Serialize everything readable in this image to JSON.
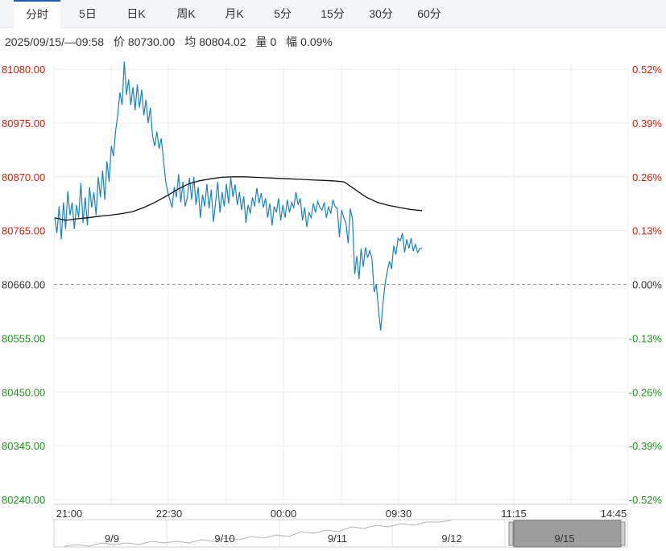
{
  "tabs": [
    {
      "label": "分时",
      "active": true
    },
    {
      "label": "5日",
      "active": false
    },
    {
      "label": "日K",
      "active": false
    },
    {
      "label": "周K",
      "active": false
    },
    {
      "label": "月K",
      "active": false
    },
    {
      "label": "5分",
      "active": false
    },
    {
      "label": "15分",
      "active": false
    },
    {
      "label": "30分",
      "active": false
    },
    {
      "label": "60分",
      "active": false
    }
  ],
  "info": {
    "datetime": "2025/09/15/—09:58",
    "price_label": "价",
    "price": "80730.00",
    "avg_label": "均",
    "avg": "80804.02",
    "volume_label": "量",
    "volume": "0",
    "change_label": "幅",
    "change": "0.09%"
  },
  "colors": {
    "up": "#d81e06",
    "down": "#1a9a1a",
    "price_line": "#1a82c4",
    "avg_line": "#111111",
    "tab_active_border": "#1a5fb4"
  },
  "chart_data": {
    "type": "line",
    "base_price": 80660,
    "ylim": [
      80240,
      81080
    ],
    "y_ticks": [
      "81080.00",
      "80975.00",
      "80870.00",
      "80765.00",
      "80660.00",
      "80555.00",
      "80450.00",
      "80345.00",
      "80240.00"
    ],
    "pct_ticks": [
      "0.52%",
      "0.39%",
      "0.26%",
      "0.13%",
      "0.00%",
      "-0.13%",
      "-0.26%",
      "-0.39%",
      "-0.52%"
    ],
    "x_ticks": [
      "21:00",
      "22:30",
      "00:00",
      "09:30",
      "11:15",
      "14:45"
    ],
    "series": [
      {
        "name": "价",
        "values": [
          80790,
          80760,
          80812,
          80748,
          80820,
          80768,
          80842,
          80795,
          80820,
          80768,
          80815,
          80790,
          80858,
          80780,
          80830,
          80775,
          80850,
          80810,
          80840,
          80795,
          80870,
          80830,
          80882,
          80825,
          80900,
          80860,
          80930,
          80910,
          80960,
          80990,
          81035,
          81010,
          81095,
          81030,
          81060,
          81010,
          81045,
          81000,
          81050,
          81005,
          81040,
          80990,
          81020,
          80975,
          81005,
          80950,
          80930,
          80958,
          80925,
          80945,
          80905,
          80862,
          80840,
          80825,
          80810,
          80850,
          80830,
          80875,
          80820,
          80860,
          80812,
          80830,
          80868,
          80825,
          80870,
          80815,
          80850,
          80790,
          80835,
          80812,
          80856,
          80808,
          80845,
          80782,
          80820,
          80860,
          80800,
          80840,
          80812,
          80856,
          80818,
          80868,
          80830,
          80855,
          80815,
          80840,
          80805,
          80832,
          80780,
          80815,
          80798,
          80830,
          80812,
          80848,
          80818,
          80838,
          80810,
          80828,
          80790,
          80818,
          80775,
          80812,
          80800,
          80828,
          80785,
          80815,
          80790,
          80825,
          80800,
          80820,
          80810,
          80840,
          80815,
          80828,
          80785,
          80810,
          80772,
          80800,
          80790,
          80818,
          80800,
          80822,
          80810,
          80805,
          80820,
          80790,
          80812,
          80798,
          80825,
          80812,
          80808,
          80752,
          80805,
          80790,
          80780,
          80740,
          80808,
          80788,
          80680,
          80715,
          80670,
          80730,
          80694,
          80732,
          80712,
          80726,
          80710,
          80645,
          80660,
          80610,
          80570,
          80620,
          80660,
          80685,
          80705,
          80690,
          80735,
          80718,
          80750,
          80745,
          80760,
          80722,
          80748,
          80730,
          80750,
          80725,
          80738,
          80722,
          80730,
          80730
        ]
      },
      {
        "name": "均",
        "values": [
          80790,
          80785,
          80788,
          80790,
          80793,
          80795,
          80798,
          80802,
          80810,
          80820,
          80832,
          80845,
          80856,
          80862,
          80866,
          80869,
          80870,
          80870,
          80869,
          80868,
          80867,
          80866,
          80865,
          80864,
          80863,
          80862,
          80860,
          80845,
          80830,
          80820,
          80814,
          80810,
          80806,
          80804
        ]
      }
    ]
  },
  "overview": {
    "labels": [
      "9/9",
      "9/10",
      "9/11",
      "9/12",
      "9/15"
    ]
  }
}
